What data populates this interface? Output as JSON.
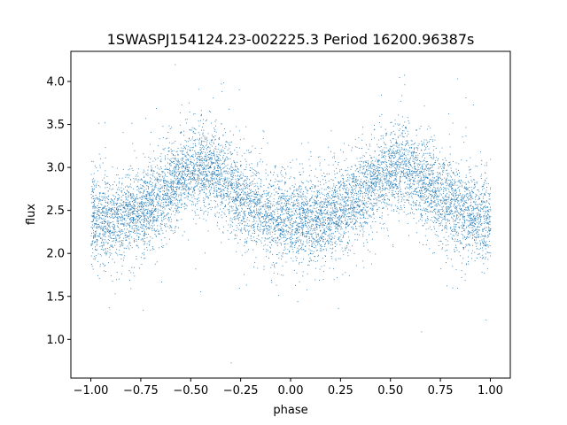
{
  "chart_data": {
    "type": "scatter",
    "title": "1SWASPJ154124.23-002225.3 Period 16200.96387s",
    "xlabel": "phase",
    "ylabel": "flux",
    "xlim": [
      -1.1,
      1.1
    ],
    "ylim": [
      0.55,
      4.35
    ],
    "xticks": [
      -1.0,
      -0.75,
      -0.5,
      -0.25,
      0.0,
      0.25,
      0.5,
      0.75,
      1.0
    ],
    "xtick_labels": [
      "−1.00",
      "−0.75",
      "−0.50",
      "−0.25",
      "0.00",
      "0.25",
      "0.50",
      "0.75",
      "1.00"
    ],
    "yticks": [
      1.0,
      1.5,
      2.0,
      2.5,
      3.0,
      3.5,
      4.0
    ],
    "ytick_labels": [
      "1.0",
      "1.5",
      "2.0",
      "2.5",
      "3.0",
      "3.5",
      "4.0"
    ],
    "grid": false,
    "marker_color": "#1f77b4",
    "series": [
      {
        "x_range": [
          -1.0,
          1.0
        ],
        "baseline_flux": 2.4,
        "typical_spread": 0.25,
        "hump_peaks": [
          {
            "phase": -0.45,
            "flux": 3.0
          },
          {
            "phase": 0.55,
            "flux": 3.0
          }
        ],
        "flux_range": [
          0.7,
          4.2
        ]
      }
    ]
  }
}
